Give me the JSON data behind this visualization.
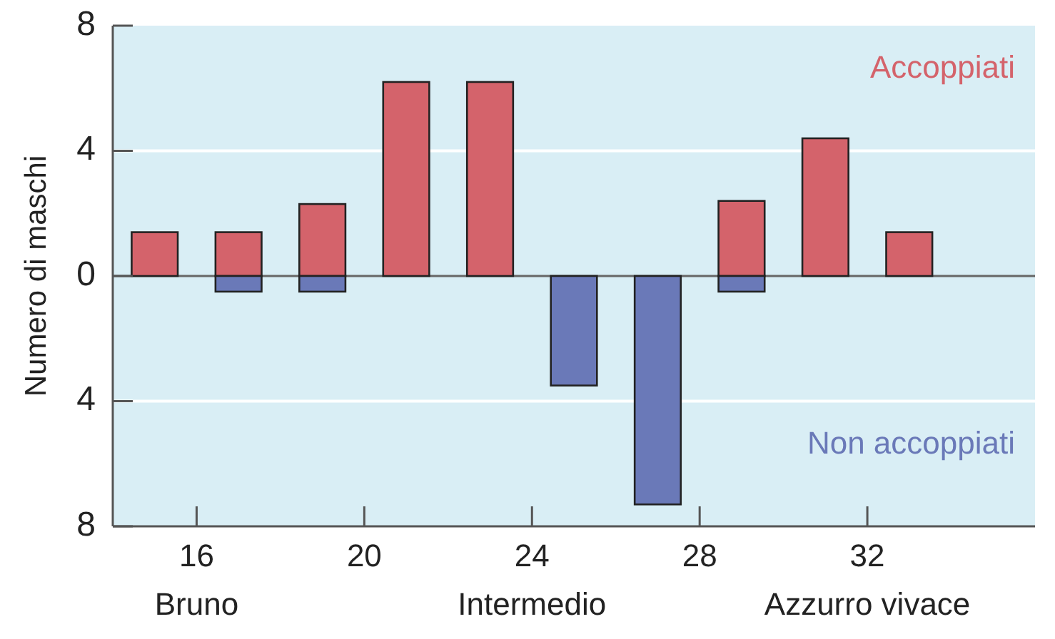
{
  "chart_data": {
    "type": "bar",
    "ylabel": "Numero di maschi",
    "x": [
      15,
      17,
      19,
      21,
      23,
      25,
      27,
      29,
      31,
      33
    ],
    "series": [
      {
        "name": "Accoppiati",
        "color": "#d4636b",
        "values": [
          1.4,
          1.4,
          2.3,
          6.2,
          6.2,
          null,
          null,
          2.4,
          4.4,
          1.4
        ]
      },
      {
        "name": "Non accoppiati",
        "color": "#6a79b8",
        "values": [
          null,
          -0.5,
          -0.5,
          null,
          null,
          -3.5,
          -7.3,
          -0.5,
          null,
          null
        ]
      }
    ],
    "xlim": [
      14,
      36
    ],
    "xticks": [
      16,
      20,
      24,
      28,
      32
    ],
    "ylim": [
      -8,
      8
    ],
    "yticks": [
      8,
      4,
      0,
      {
        "value": -4,
        "label": "4"
      },
      {
        "value": -8,
        "label": "8"
      }
    ],
    "grid": "y",
    "annotations": [
      "Bruno",
      "Intermedio",
      "Azzurro vivace"
    ]
  }
}
